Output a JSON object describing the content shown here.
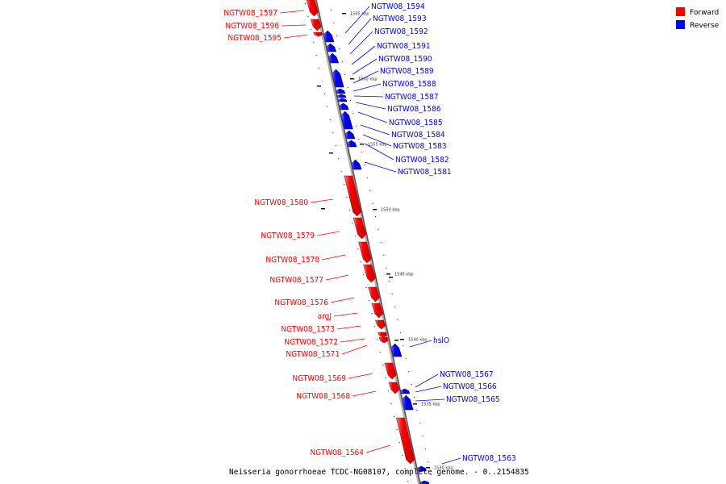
{
  "legend": {
    "forward_label": "Forward",
    "reverse_label": "Reverse",
    "forward_color": "#ff0000",
    "reverse_color": "#0000ff"
  },
  "caption": "Neisseria gonorrhoeae TCDC-NG08107, complete genome. - 0..2154835",
  "scale_ticks": [
    "1565 kbp",
    "1560 kbp",
    "1555 kbp",
    "1550 kbp",
    "1545 kbp",
    "1540 kbp",
    "1535 kbp",
    "1530 kbp"
  ],
  "forward_genes": [
    "NGTW08_1597",
    "NGTW08_1596",
    "NGTW08_1595",
    "NGTW08_1580",
    "NGTW08_1579",
    "NGTW08_1578",
    "NGTW08_1577",
    "NGTW08_1576",
    "argJ",
    "NGTW08_1573",
    "NGTW08_1572",
    "NGTW08_1571",
    "NGTW08_1569",
    "NGTW08_1568",
    "NGTW08_1564"
  ],
  "reverse_genes": [
    "NGTW08_1594",
    "NGTW08_1593",
    "NGTW08_1592",
    "NGTW08_1591",
    "NGTW08_1590",
    "NGTW08_1589",
    "NGTW08_1588",
    "NGTW08_1587",
    "NGTW08_1586",
    "NGTW08_1585",
    "NGTW08_1584",
    "NGTW08_1583",
    "NGTW08_1582",
    "NGTW08_1581",
    "hslO",
    "NGTW08_1567",
    "NGTW08_1566",
    "NGTW08_1565",
    "NGTW08_1563"
  ]
}
